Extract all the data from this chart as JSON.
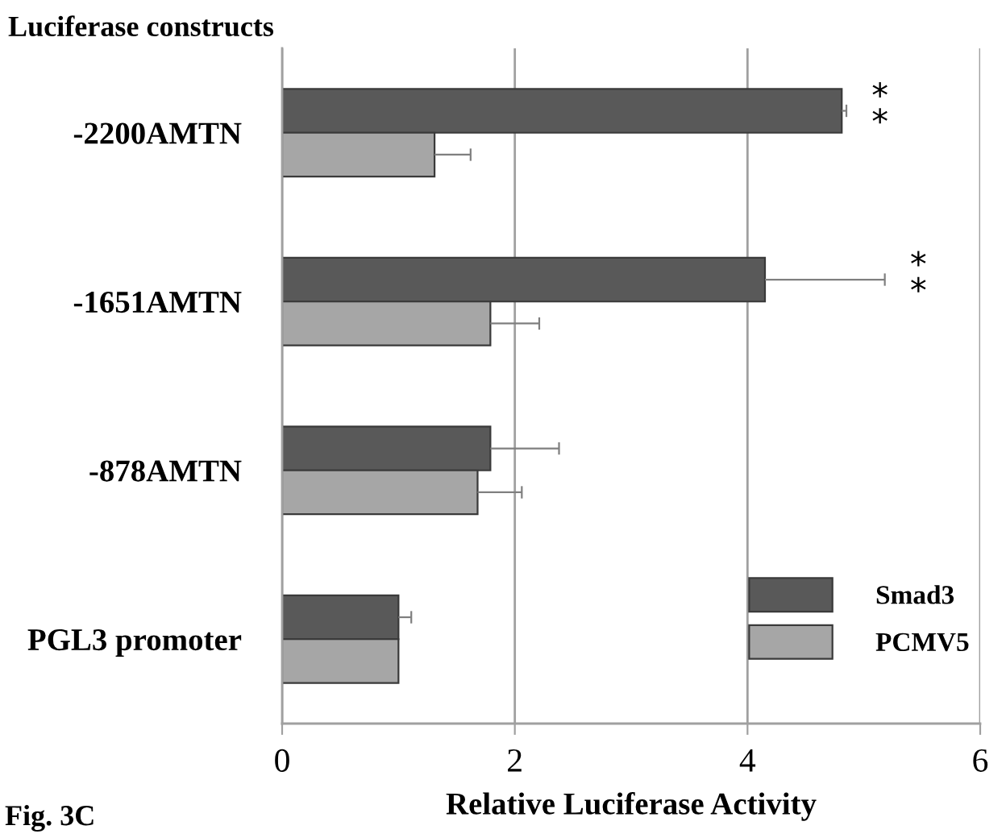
{
  "chart_data": {
    "type": "bar",
    "orientation": "horizontal",
    "ylabel": "Luciferase constructs",
    "xlabel": "Relative Luciferase Activity",
    "categories": [
      "-2200AMTN",
      "-1651AMTN",
      "-878AMTN",
      "PGL3 promoter"
    ],
    "series": [
      {
        "name": "Smad3",
        "color": "#595959",
        "values": [
          4.81,
          4.15,
          1.79,
          1.0
        ],
        "errors": [
          [
            4.81,
            4.85
          ],
          [
            4.15,
            5.18
          ],
          [
            1.79,
            2.38
          ],
          [
            1.0,
            1.11
          ]
        ]
      },
      {
        "name": "PCMV5",
        "color": "#a6a6a6",
        "values": [
          1.31,
          1.79,
          1.68,
          1.0
        ],
        "errors": [
          [
            1.31,
            1.62
          ],
          [
            1.79,
            2.21
          ],
          [
            1.68,
            2.06
          ],
          null
        ]
      }
    ],
    "xlim": [
      0,
      6
    ],
    "xticks": [
      0,
      2,
      4,
      6
    ],
    "grid": "x",
    "legend": "bottom right",
    "annotations": [
      "*\n*",
      "*\n*",
      "Fig. 3C"
    ]
  }
}
